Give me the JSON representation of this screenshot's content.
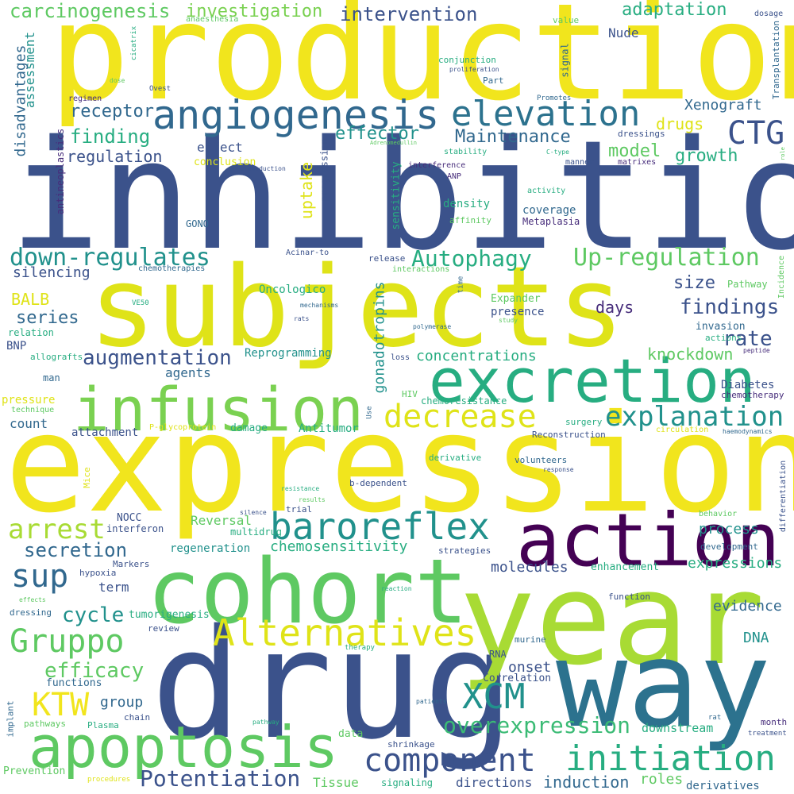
{
  "palette": {
    "yellow": "#f1e51d",
    "lime": "#a8db34",
    "green": "#5ec962",
    "teal": "#21918c",
    "cyan": "#27ad81",
    "blue": "#3b528b",
    "indigo": "#472d7b",
    "purple": "#440154"
  },
  "words": [
    "production",
    "inhibition",
    "subjects",
    "expression",
    "drug",
    "year",
    "way",
    "cohort",
    "action",
    "infusion",
    "excretion",
    "apoptosis",
    "angiogenesis",
    "elevation",
    "baroreflex",
    "Alternatives",
    "component",
    "initiation",
    "decrease",
    "explanation",
    "Gruppo",
    "CTG",
    "XCM",
    "KTW",
    "sup",
    "arrest",
    "down-regulates",
    "Up-regulation",
    "Autophagy",
    "overexpression",
    "Potentiation",
    "augmentation",
    "carcinogenesis",
    "investigation",
    "intervention",
    "adaptation",
    "secretion",
    "findings",
    "efficacy",
    "cycle",
    "chemosensitivity",
    "rate",
    "Maintenance",
    "finding",
    "regulation",
    "receptor",
    "model",
    "effector",
    "growth",
    "drugs",
    "uptake",
    "size",
    "days",
    "knockdown",
    "concentrations",
    "gonadotropins",
    "series",
    "BALB",
    "silencing",
    "assessment",
    "disadvantages",
    "Xenograft",
    "Nude",
    "molecules",
    "process",
    "expressions",
    "evidence",
    "DNA",
    "onset",
    "group",
    "induction",
    "directions",
    "roles",
    "derivatives",
    "downstream",
    "Tissue",
    "term",
    "agents",
    "Reprogramming",
    "Oncologico",
    "effect",
    "conclusion",
    "antineoplastics",
    "progression",
    "sensitivity",
    "density",
    "coverage",
    "Metaplasia",
    "Diabetes",
    "chemotherapy",
    "invasion",
    "actions",
    "presence",
    "Expander",
    "Pathway",
    "count",
    "attachment",
    "damage",
    "Antitumor",
    "Reversal",
    "regeneration",
    "NOCC",
    "interferon",
    "multidrug",
    "Markers",
    "hypoxia",
    "tumorigenesis",
    "review",
    "functions",
    "chain",
    "Plasma",
    "pathways",
    "implant",
    "Prevention",
    "procedures",
    "signaling",
    "shrinkage",
    "data",
    "Correlation",
    "RNA",
    "therapy",
    "murine",
    "function",
    "enhancement",
    "strategies",
    "development",
    "behavior",
    "differentiation",
    "Incidence",
    "Transplantation",
    "month",
    "treatment",
    "rat",
    "surgery",
    "HIV",
    "chemoresistance",
    "Use",
    "P-glycoprotein",
    "Reconstruction",
    "circulation",
    "haemodynamics",
    "derivative",
    "volunteers",
    "response",
    "b-dependent",
    "trial",
    "silence",
    "resistance",
    "results",
    "reaction",
    "patients",
    "pathway",
    "Mice",
    "dressing",
    "effects",
    "man",
    "allografts",
    "relation",
    "BNP",
    "pressure",
    "technique",
    "VE50",
    "rats",
    "study",
    "peptide",
    "loss",
    "polymerase",
    "mechanisms",
    "time",
    "interactions",
    "release",
    "chemotherapies",
    "Acinar-to",
    "GONO",
    "activity",
    "affinity",
    "ANP",
    "interference",
    "stability",
    "C-type",
    "dressings",
    "matrixes",
    "manner",
    "Adrenomedullin",
    "transduction",
    "Part",
    "proliferation",
    "conjunction",
    "value",
    "signal",
    "dosage",
    "Promotes",
    "Ovest",
    "regimen",
    "dose",
    "cicatrix",
    "anaesthesia",
    "role"
  ]
}
